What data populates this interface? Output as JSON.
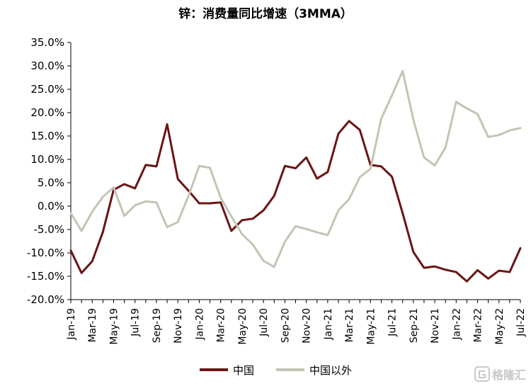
{
  "colors": {
    "china": "#6b1414",
    "ex_china": "#c4c4b4",
    "axis": "#000000",
    "watermark": "#c8c8c8"
  },
  "watermark": {
    "text": "格隆汇",
    "icon": "g-logo-icon"
  },
  "chart_data": {
    "type": "line",
    "title": "锌：消费量同比增速（3MMA）",
    "xlabel": "",
    "ylabel": "",
    "ylim": [
      -20,
      35
    ],
    "y_ticks": [
      35,
      30,
      25,
      20,
      15,
      10,
      5,
      0,
      -5,
      -10,
      -15,
      -20
    ],
    "y_tick_labels": [
      "35.0%",
      "30.0%",
      "25.0%",
      "20.0%",
      "15.0%",
      "10.0%",
      "5.0%",
      "0.0%",
      "-5.0%",
      "-10.0%",
      "-15.0%",
      "-20.0%"
    ],
    "grid": false,
    "legend_position": "bottom-center",
    "x": [
      "Jan-19",
      "Feb-19",
      "Mar-19",
      "Apr-19",
      "May-19",
      "Jun-19",
      "Jul-19",
      "Aug-19",
      "Sep-19",
      "Oct-19",
      "Nov-19",
      "Dec-19",
      "Jan-20",
      "Feb-20",
      "Mar-20",
      "Apr-20",
      "May-20",
      "Jun-20",
      "Jul-20",
      "Aug-20",
      "Sep-20",
      "Oct-20",
      "Nov-20",
      "Dec-20",
      "Jan-21",
      "Feb-21",
      "Mar-21",
      "Apr-21",
      "May-21",
      "Jun-21",
      "Jul-21",
      "Aug-21",
      "Sep-21",
      "Oct-21",
      "Nov-21",
      "Dec-21",
      "Jan-22",
      "Feb-22",
      "Mar-22",
      "Apr-22",
      "May-22",
      "Jun-22",
      "Jul-22"
    ],
    "x_tick_labels": [
      "Jan-19",
      "Mar-19",
      "May-19",
      "Jul-19",
      "Sep-19",
      "Nov-19",
      "Jan-20",
      "Mar-20",
      "May-20",
      "Jul-20",
      "Sep-20",
      "Nov-20",
      "Jan-21",
      "Mar-21",
      "May-21",
      "Jul-21",
      "Sep-21",
      "Nov-21",
      "Jan-22",
      "Mar-22",
      "May-22",
      "Jul-22"
    ],
    "series": [
      {
        "name": "中国",
        "color_key": "china",
        "values": [
          -9.5,
          -14.3,
          -11.8,
          -5.5,
          3.5,
          4.7,
          3.8,
          8.8,
          8.5,
          17.5,
          5.8,
          3.3,
          0.6,
          0.6,
          0.8,
          -5.3,
          -3.0,
          -2.7,
          -0.9,
          2.2,
          8.6,
          8.1,
          10.4,
          5.9,
          7.3,
          15.5,
          18.2,
          16.3,
          8.8,
          8.5,
          6.3,
          -1.5,
          -9.8,
          -13.2,
          -12.9,
          -13.6,
          -14.1,
          -16.1,
          -13.7,
          -15.5,
          -13.8,
          -14.1,
          -9.0
        ]
      },
      {
        "name": "中国以外",
        "color_key": "ex_china",
        "values": [
          -1.5,
          -5.3,
          -1.2,
          2.0,
          4.0,
          -2.1,
          0.2,
          1.0,
          0.8,
          -4.5,
          -3.4,
          2.2,
          8.6,
          8.2,
          1.8,
          -2.2,
          -6.0,
          -8.2,
          -11.7,
          -13.0,
          -7.6,
          -4.3,
          -4.9,
          -5.6,
          -6.2,
          -0.9,
          1.5,
          6.2,
          8.0,
          18.7,
          23.7,
          28.9,
          18.5,
          10.4,
          8.7,
          12.5,
          22.3,
          20.9,
          19.7,
          14.8,
          15.2,
          16.2,
          16.7
        ]
      }
    ]
  }
}
